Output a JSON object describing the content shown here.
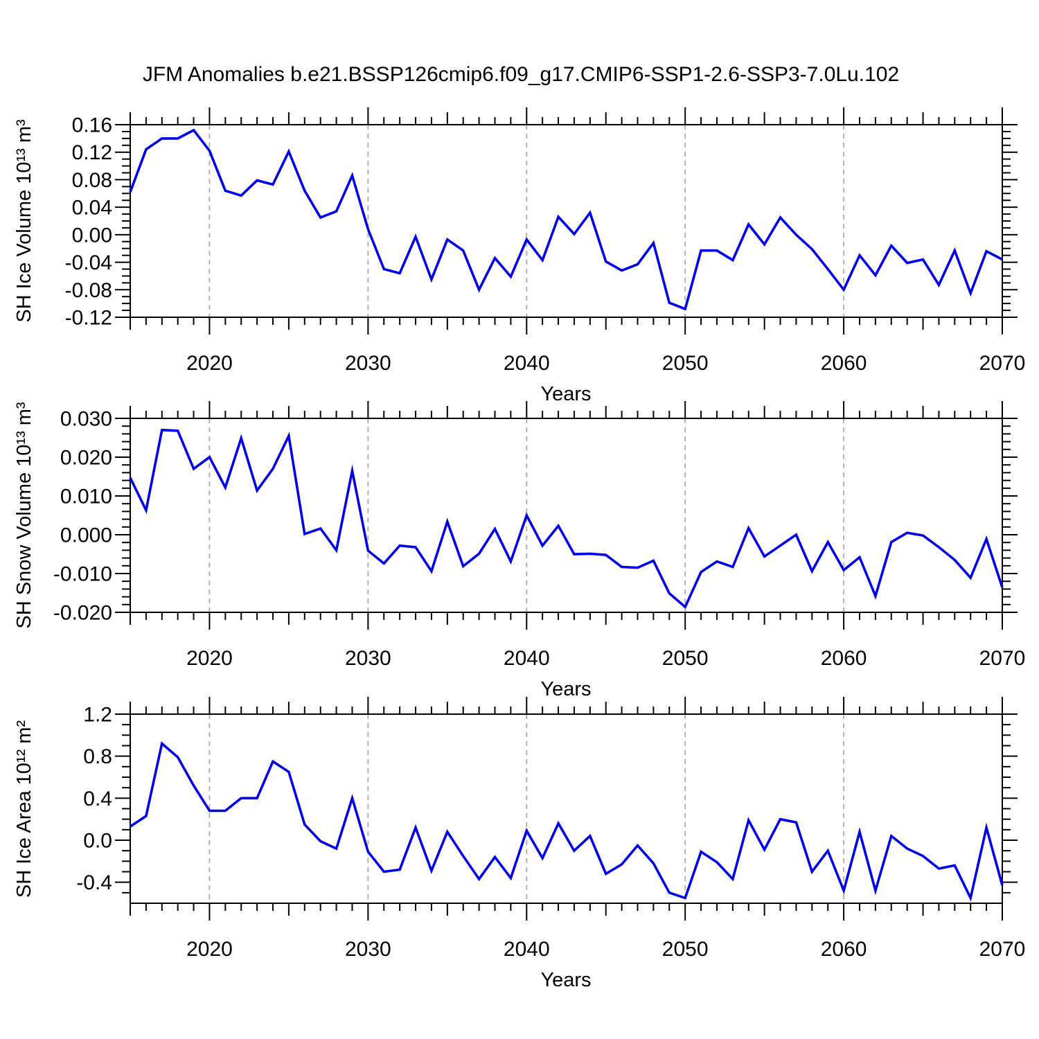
{
  "title": "JFM Anomalies b.e21.BSSP126cmip6.f09_g17.CMIP6-SSP1-2.6-SSP3-7.0Lu.102",
  "colors": {
    "line": "#0000E6",
    "axis": "#000000",
    "grid": "#a8a8a8",
    "background": "#ffffff"
  },
  "x": {
    "label": "Years",
    "start": 2015,
    "end": 2070,
    "major_ticks": [
      2020,
      2030,
      2040,
      2050,
      2060,
      2070
    ],
    "medium_tick_interval": 5,
    "minor_tick_interval": 1,
    "grid_years": [
      2020,
      2030,
      2040,
      2050,
      2060
    ]
  },
  "chart_data": [
    {
      "id": "sh-ice-volume",
      "type": "line",
      "title": "",
      "ylabel": "SH Ice Volume 10¹³ m³",
      "xlabel": "Years",
      "legend": "none",
      "grid": "vertical-dashed-at-decades",
      "ylim": [
        -0.12,
        0.16
      ],
      "yticks": [
        0.16,
        0.12,
        0.08,
        0.04,
        0.0,
        -0.04,
        -0.08,
        -0.12
      ],
      "ytick_labels": [
        "0.16",
        "0.12",
        "0.08",
        "0.04",
        "0.00",
        "-0.04",
        "-0.08",
        "-0.12"
      ],
      "yminor_step": 0.01,
      "x_start": 2015,
      "x_end": 2070,
      "x_step": 1,
      "values": [
        0.062,
        0.124,
        0.14,
        0.14,
        0.152,
        0.122,
        0.064,
        0.057,
        0.079,
        0.073,
        0.121,
        0.064,
        0.025,
        0.034,
        0.086,
        0.008,
        -0.05,
        -0.056,
        -0.003,
        -0.065,
        -0.007,
        -0.023,
        -0.08,
        -0.034,
        -0.061,
        -0.007,
        -0.037,
        0.026,
        0.001,
        0.032,
        -0.039,
        -0.052,
        -0.043,
        -0.012,
        -0.099,
        -0.108,
        -0.023,
        -0.023,
        -0.037,
        0.015,
        -0.014,
        0.025,
        0.0,
        -0.021,
        -0.05,
        -0.08,
        -0.03,
        -0.059,
        -0.016,
        -0.041,
        -0.036,
        -0.073,
        -0.023,
        -0.085,
        -0.024,
        -0.036
      ]
    },
    {
      "id": "sh-snow-volume",
      "type": "line",
      "title": "",
      "ylabel": "SH Snow Volume 10¹³ m³",
      "xlabel": "Years",
      "legend": "none",
      "grid": "vertical-dashed-at-decades",
      "ylim": [
        -0.02,
        0.03
      ],
      "yticks": [
        0.03,
        0.02,
        0.01,
        0.0,
        -0.01,
        -0.02
      ],
      "ytick_labels": [
        "0.030",
        "0.020",
        "0.010",
        "0.000",
        "-0.010",
        "-0.020"
      ],
      "yminor_step": 0.002,
      "x_start": 2015,
      "x_end": 2070,
      "x_step": 1,
      "values": [
        0.0147,
        0.0063,
        0.027,
        0.0268,
        0.017,
        0.02,
        0.0122,
        0.0249,
        0.0114,
        0.017,
        0.0255,
        0.0002,
        0.0016,
        -0.004,
        0.0165,
        -0.0041,
        -0.0074,
        -0.0028,
        -0.0032,
        -0.0094,
        0.0034,
        -0.0081,
        -0.0049,
        0.0015,
        -0.0069,
        0.005,
        -0.0028,
        0.0023,
        -0.005,
        -0.0049,
        -0.0052,
        -0.0083,
        -0.0085,
        -0.0067,
        -0.0151,
        -0.0186,
        -0.0096,
        -0.0069,
        -0.0083,
        0.0017,
        -0.0056,
        -0.0028,
        0.0,
        -0.0094,
        -0.0019,
        -0.0091,
        -0.0058,
        -0.0158,
        -0.0019,
        0.0005,
        -0.0002,
        -0.0032,
        -0.0065,
        -0.0111,
        -0.0011,
        -0.0136
      ]
    },
    {
      "id": "sh-ice-area",
      "type": "line",
      "title": "",
      "ylabel": "SH Ice Area 10¹² m²",
      "xlabel": "Years",
      "legend": "none",
      "grid": "vertical-dashed-at-decades",
      "ylim": [
        -0.6,
        1.2
      ],
      "yticks": [
        1.2,
        0.8,
        0.4,
        0.0,
        -0.4
      ],
      "ytick_labels": [
        "1.2",
        "0.8",
        "0.4",
        "0.0",
        "-0.4"
      ],
      "yminor_step": 0.1,
      "x_start": 2015,
      "x_end": 2070,
      "x_step": 1,
      "values": [
        0.13,
        0.23,
        0.92,
        0.79,
        0.52,
        0.28,
        0.28,
        0.4,
        0.4,
        0.75,
        0.65,
        0.15,
        -0.01,
        -0.08,
        0.4,
        -0.11,
        -0.3,
        -0.28,
        0.12,
        -0.29,
        0.08,
        -0.15,
        -0.37,
        -0.16,
        -0.36,
        0.09,
        -0.17,
        0.16,
        -0.1,
        0.04,
        -0.32,
        -0.23,
        -0.05,
        -0.22,
        -0.5,
        -0.55,
        -0.11,
        -0.21,
        -0.37,
        0.19,
        -0.09,
        0.2,
        0.17,
        -0.3,
        -0.1,
        -0.48,
        0.08,
        -0.48,
        0.04,
        -0.08,
        -0.15,
        -0.27,
        -0.24,
        -0.55,
        0.12,
        -0.43
      ]
    }
  ]
}
